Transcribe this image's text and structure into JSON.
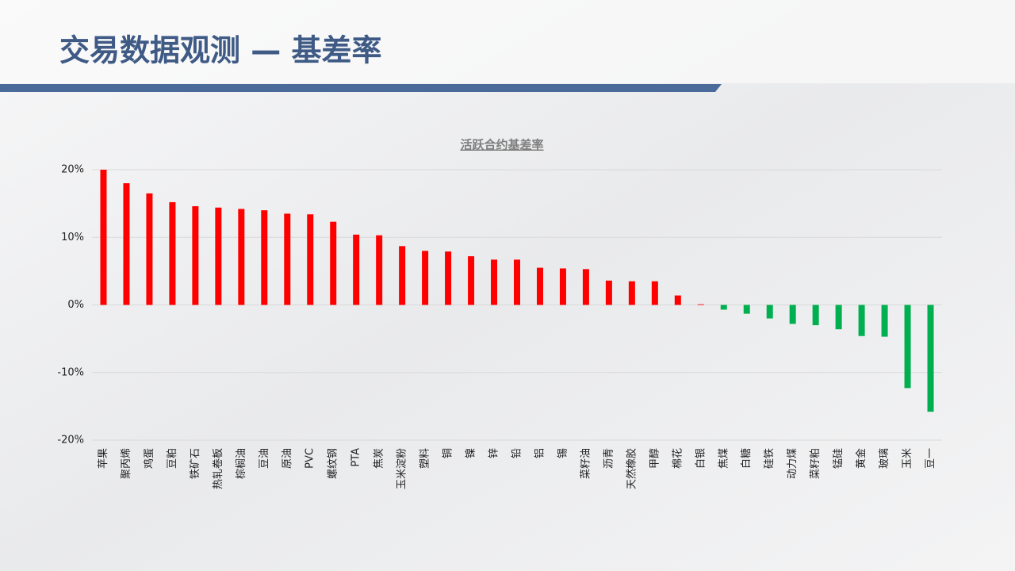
{
  "slide_title": "交易数据观测 — 基差率",
  "chart_data": {
    "type": "bar",
    "title": "活跃合约基差率",
    "categories": [
      "苹果",
      "聚丙烯",
      "鸡蛋",
      "豆粕",
      "铁矿石",
      "热轧卷板",
      "棕榈油",
      "豆油",
      "原油",
      "PVC",
      "螺纹钢",
      "PTA",
      "焦炭",
      "玉米淀粉",
      "塑料",
      "铜",
      "镍",
      "锌",
      "铅",
      "铝",
      "锡",
      "菜籽油",
      "沥青",
      "天然橡胶",
      "甲醇",
      "棉花",
      "白银",
      "焦煤",
      "白糖",
      "硅铁",
      "动力煤",
      "菜籽粕",
      "锰硅",
      "黄金",
      "玻璃",
      "玉米",
      "豆一"
    ],
    "values": [
      20.0,
      18.0,
      16.5,
      15.2,
      14.6,
      14.4,
      14.2,
      14.0,
      13.5,
      13.4,
      12.3,
      10.4,
      10.3,
      8.7,
      8.0,
      7.9,
      7.2,
      6.7,
      6.7,
      5.5,
      5.4,
      5.3,
      3.6,
      3.5,
      3.5,
      1.4,
      0.1,
      -0.7,
      -1.3,
      -2.0,
      -2.8,
      -3.0,
      -3.6,
      -4.6,
      -4.7,
      -12.3,
      -15.8
    ],
    "colors": {
      "positive": "#ff0000",
      "negative": "#00b050"
    },
    "ylim": [
      -20,
      20
    ],
    "yticks": [
      {
        "value": -20,
        "label": "-20%"
      },
      {
        "value": -10,
        "label": "-10%"
      },
      {
        "value": 0,
        "label": "0%"
      },
      {
        "value": 10,
        "label": "10%"
      },
      {
        "value": 20,
        "label": "20%"
      }
    ],
    "grid": true
  }
}
